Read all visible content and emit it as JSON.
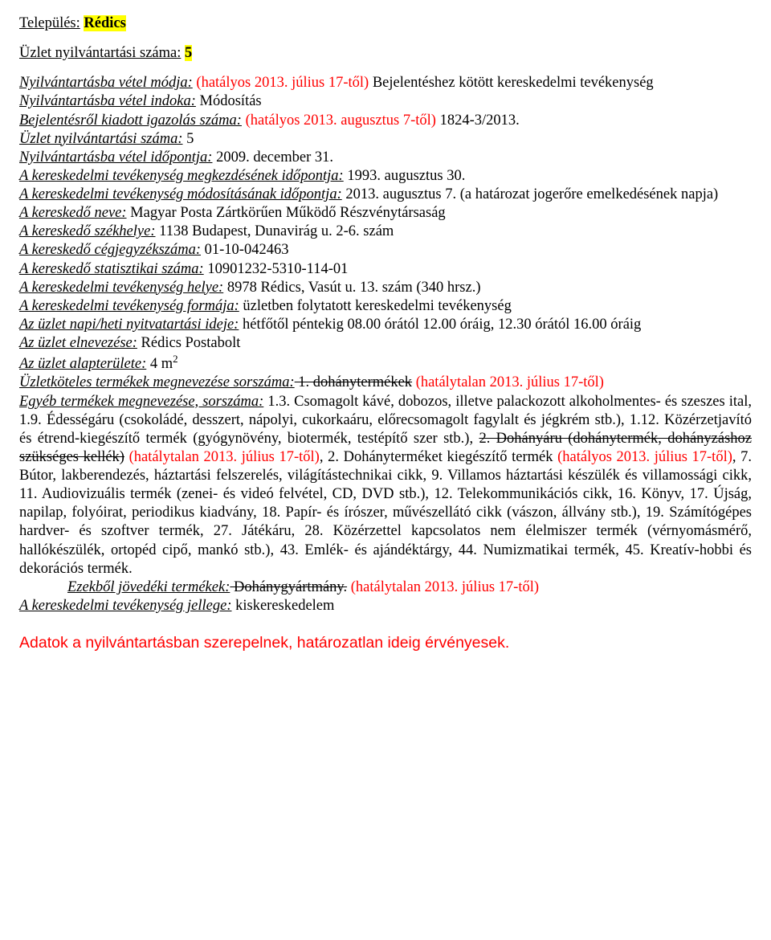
{
  "colors": {
    "highlight": "#ffff00",
    "red": "#ff0000",
    "text": "#000000",
    "background": "#ffffff"
  },
  "header": {
    "settlement_label": "Település:",
    "settlement_value": "Rédics",
    "reg_number_label": "Üzlet nyilvántartási száma:",
    "reg_number_value": "5"
  },
  "entry": {
    "mode_label": "Nyilvántartásba vétel módja:",
    "mode_note_red": "(hatályos 2013. július 17-től)",
    "mode_text": " Bejelentéshez kötött kereskedelmi tevékenység",
    "reason_label": "Nyilvántartásba vétel indoka:",
    "reason_value": " Módosítás",
    "cert_label": "Bejelentésről kiadott igazolás száma:",
    "cert_note_red": "(hatályos 2013. augusztus 7-től)",
    "cert_value": " 1824-3/2013.",
    "regnum2_label": "Üzlet nyilvántartási száma:",
    "regnum2_value": " 5",
    "date_label": "Nyilvántartásba vétel időpontja:",
    "date_value": " 2009. december 31.",
    "start_label": "A kereskedelmi tevékenység megkezdésének időpontja:",
    "start_value": " 1993. augusztus 30.",
    "mod_label": "A kereskedelmi tevékenység módosításának időpontja:",
    "mod_value": " 2013. augusztus 7. (a határozat jogerőre emelkedésének napja)",
    "trader_name_label": "A kereskedő neve:",
    "trader_name_value": " Magyar Posta Zártkörűen Működő Részvénytársaság",
    "trader_seat_label": "A kereskedő székhelye:",
    "trader_seat_value": " 1138 Budapest, Dunavirág u. 2-6. szám",
    "trader_reg_label": "A kereskedő cégjegyzékszáma:",
    "trader_reg_value": " 01-10-042463",
    "trader_stat_label": "A kereskedő statisztikai száma:",
    "trader_stat_value": " 10901232-5310-114-01",
    "place_label": "A kereskedelmi tevékenység helye:",
    "place_value": " 8978 Rédics, Vasút u. 13. szám (340 hrsz.)",
    "form_label": "A kereskedelmi tevékenység formája:",
    "form_value": " üzletben folytatott kereskedelmi tevékenység",
    "hours_label": "Az üzlet napi/heti nyitvatartási ideje:",
    "hours_value": " hétfőtől péntekig 08.00 órától 12.00 óráig, 12.30 órától 16.00 óráig",
    "shopname_label": "Az üzlet elnevezése:",
    "shopname_value": " Rédics Postabolt",
    "area_label": "Az üzlet alapterülete:",
    "area_value_prefix": " 4 m",
    "area_exponent": "2",
    "prodreq_label": "Üzletköteles termékek megnevezése sorszáma:",
    "prodreq_strike": " 1. dohánytermékek",
    "prodreq_red": " (hatálytalan 2013. július 17-től)",
    "other_label": "Egyéb termékek megnevezése, sorszáma:",
    "other_part1": " 1.3. Csomagolt kávé, dobozos, illetve palackozott alkoholmentes- és szeszes ital, 1.9. Édességáru (csokoládé, desszert, nápolyi, cukorkaáru, előrecsomagolt fagylalt és jégkrém stb.), 1.12. Közérzetjavító és étrend-kiegészítő termék (gyógynövény, biotermék, testépítő szer stb.), ",
    "other_strike": "2. Dohányáru (dohánytermék, dohányzáshoz szükséges kellék)",
    "other_red1": " (hatálytalan 2013. július 17-től)",
    "other_part2a": ", 2. Dohányterméket kiegészítő termék ",
    "other_red2": "(hatályos 2013. július 17-től)",
    "other_part2b": ", 7. Bútor, lakberendezés, háztartási felszerelés, világítástechnikai cikk, 9. Villamos háztartási készülék és villamossági cikk, 11. Audiovizuális termék (zenei- és videó felvétel, CD, DVD stb.), 12. Telekommunikációs cikk, 16. Könyv, 17. Újság, napilap, folyóirat, periodikus kiadvány, 18. Papír- és írószer, művészellátó cikk (vászon, állvány stb.), 19. Számítógépes hardver- és szoftver termék, 27. Játékáru, 28. Közérzettel kapcsolatos nem élelmiszer termék (vérnyomásmérő, hallókészülék, ortopéd cipő, mankó stb.), 43. Emlék- és ajándéktárgy, 44. Numizmatikai termék, 45. Kreatív-hobbi és dekorációs termék.",
    "excise_label": "Ezekből jövedéki termékek:",
    "excise_strike": " Dohánygyártmány.",
    "excise_red": " (hatálytalan 2013. július 17-től)",
    "nature_label": "A kereskedelmi tevékenység jellege:",
    "nature_value": " kiskereskedelem"
  },
  "footer": "Adatok a nyilvántartásban szerepelnek, határozatlan ideig érvényesek."
}
